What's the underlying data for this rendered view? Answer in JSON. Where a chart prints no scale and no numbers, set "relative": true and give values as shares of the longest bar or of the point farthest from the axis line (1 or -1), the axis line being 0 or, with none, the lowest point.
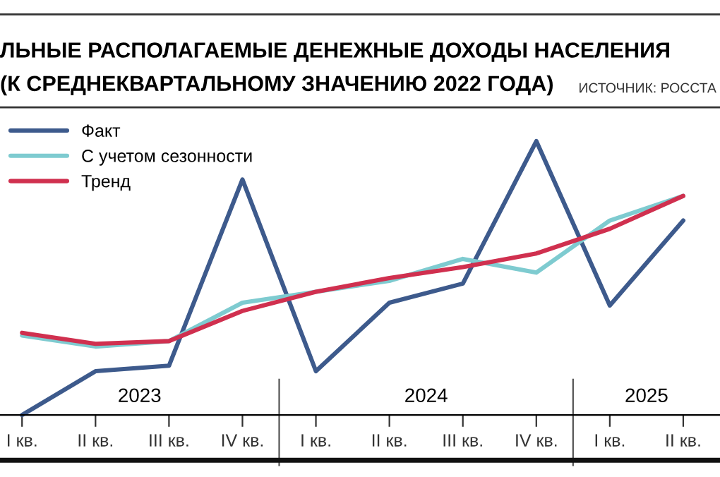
{
  "chart_data": {
    "type": "line",
    "title": "ЛЬНЫЕ РАСПОЛАГАЕМЫЕ ДЕНЕЖНЫЕ ДОХОДЫ НАСЕЛЕНИЯ",
    "subtitle": "(К СРЕДНЕКВАРТАЛЬНОМУ ЗНАЧЕНИЮ 2022 ГОДА)",
    "annotations": [
      "ИСТОЧНИК: РОССТА",
      "2023",
      "2024",
      "2025"
    ],
    "categories": [
      "I кв.",
      "II кв.",
      "III кв.",
      "IV кв.",
      "I кв.",
      "II кв.",
      "III кв.",
      "IV кв.",
      "I кв.",
      "II кв."
    ],
    "relative": true,
    "series": [
      {
        "name": "Факт",
        "color": "#3d5a8c",
        "values": [
          0,
          0.16,
          0.18,
          0.86,
          0.16,
          0.41,
          0.48,
          1,
          0.4,
          0.71
        ]
      },
      {
        "name": "С учетом сезонности",
        "color": "#7ecbd0",
        "values": [
          0.29,
          0.25,
          0.27,
          0.41,
          0.45,
          0.49,
          0.57,
          0.52,
          0.71,
          0.8
        ]
      },
      {
        "name": "Тренд",
        "color": "#d0304f",
        "values": [
          0.3,
          0.26,
          0.27,
          0.38,
          0.45,
          0.5,
          0.54,
          0.59,
          0.68,
          0.8
        ]
      }
    ],
    "legend": "top left",
    "grid": false,
    "marker": "none",
    "line_style": "solid"
  }
}
